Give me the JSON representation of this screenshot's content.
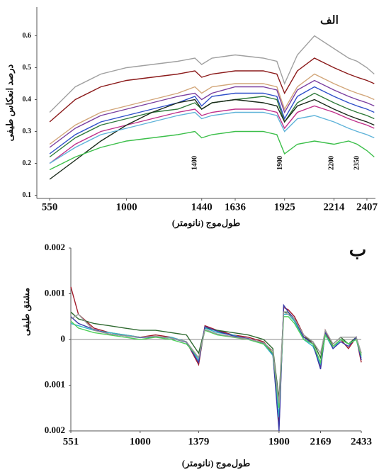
{
  "chart_data": [
    {
      "type": "line",
      "title": "الف",
      "x_label": "طول‌موج (نانومتر)",
      "y_label": "درصد انعکاس طیفی",
      "xlim": [
        475,
        2457
      ],
      "ylim": [
        0.09,
        0.69
      ],
      "xticks": [
        550,
        1000,
        1440,
        1636,
        1925,
        2214,
        2407
      ],
      "yticks": [
        0.1,
        0.2,
        0.3,
        0.4,
        0.5,
        0.6
      ],
      "annotations": [
        1400,
        1900,
        2200,
        2350
      ],
      "x": [
        550,
        700,
        850,
        1000,
        1150,
        1300,
        1400,
        1440,
        1500,
        1636,
        1800,
        1880,
        1925,
        2000,
        2100,
        2214,
        2300,
        2350,
        2407,
        2450
      ],
      "series": [
        {
          "color": "#a0a0a0",
          "values": [
            0.36,
            0.44,
            0.48,
            0.5,
            0.51,
            0.52,
            0.53,
            0.51,
            0.53,
            0.54,
            0.53,
            0.52,
            0.45,
            0.54,
            0.6,
            0.56,
            0.53,
            0.52,
            0.5,
            0.48
          ]
        },
        {
          "color": "#8b1a1a",
          "values": [
            0.33,
            0.4,
            0.44,
            0.46,
            0.47,
            0.48,
            0.49,
            0.47,
            0.48,
            0.49,
            0.49,
            0.48,
            0.42,
            0.49,
            0.53,
            0.5,
            0.48,
            0.47,
            0.46,
            0.45
          ]
        },
        {
          "color": "#d2a679",
          "values": [
            0.26,
            0.32,
            0.36,
            0.38,
            0.4,
            0.42,
            0.44,
            0.42,
            0.44,
            0.45,
            0.45,
            0.44,
            0.37,
            0.44,
            0.48,
            0.45,
            0.43,
            0.42,
            0.41,
            0.4
          ]
        },
        {
          "color": "#7b3fa0",
          "values": [
            0.25,
            0.31,
            0.35,
            0.37,
            0.39,
            0.41,
            0.42,
            0.4,
            0.42,
            0.44,
            0.44,
            0.43,
            0.36,
            0.43,
            0.46,
            0.43,
            0.41,
            0.4,
            0.39,
            0.38
          ]
        },
        {
          "color": "#2e4fc9",
          "values": [
            0.23,
            0.29,
            0.33,
            0.35,
            0.37,
            0.39,
            0.41,
            0.38,
            0.41,
            0.42,
            0.42,
            0.41,
            0.34,
            0.41,
            0.44,
            0.41,
            0.39,
            0.38,
            0.37,
            0.36
          ]
        },
        {
          "color": "#2f7a3a",
          "values": [
            0.22,
            0.28,
            0.32,
            0.34,
            0.36,
            0.37,
            0.39,
            0.37,
            0.39,
            0.4,
            0.41,
            0.4,
            0.33,
            0.39,
            0.42,
            0.39,
            0.37,
            0.36,
            0.35,
            0.34
          ]
        },
        {
          "color": "#c0308a",
          "values": [
            0.2,
            0.26,
            0.3,
            0.32,
            0.34,
            0.36,
            0.37,
            0.35,
            0.36,
            0.37,
            0.37,
            0.36,
            0.31,
            0.36,
            0.38,
            0.36,
            0.34,
            0.33,
            0.32,
            0.31
          ]
        },
        {
          "color": "#1a2a1a",
          "values": [
            0.15,
            0.21,
            0.27,
            0.32,
            0.36,
            0.39,
            0.4,
            0.37,
            0.39,
            0.4,
            0.39,
            0.38,
            0.33,
            0.38,
            0.4,
            0.37,
            0.35,
            0.34,
            0.33,
            0.32
          ]
        },
        {
          "color": "#5fb3d9",
          "values": [
            0.2,
            0.25,
            0.29,
            0.31,
            0.33,
            0.35,
            0.36,
            0.34,
            0.35,
            0.36,
            0.36,
            0.35,
            0.3,
            0.34,
            0.35,
            0.33,
            0.31,
            0.3,
            0.29,
            0.28
          ]
        },
        {
          "color": "#3cbf4a",
          "values": [
            0.18,
            0.22,
            0.25,
            0.27,
            0.28,
            0.29,
            0.3,
            0.28,
            0.29,
            0.3,
            0.3,
            0.29,
            0.23,
            0.26,
            0.27,
            0.26,
            0.27,
            0.26,
            0.24,
            0.22
          ]
        }
      ]
    },
    {
      "type": "line",
      "title": "ب",
      "x_label": "طول‌موج (نانومتر)",
      "y_label": "مشتق طیفی",
      "xlim": [
        551,
        2433
      ],
      "ylim": [
        -0.002,
        0.002
      ],
      "xticks": [
        551,
        1000,
        1379,
        1900,
        2169,
        2433
      ],
      "yticks": [
        0.002,
        0.001,
        0,
        {
          "value": -0.001,
          "label": "0.001"
        },
        {
          "value": -0.002,
          "label": "0.002"
        }
      ],
      "x": [
        551,
        600,
        700,
        800,
        900,
        1000,
        1100,
        1200,
        1300,
        1379,
        1420,
        1500,
        1600,
        1700,
        1800,
        1860,
        1900,
        1930,
        1960,
        2000,
        2060,
        2120,
        2169,
        2200,
        2250,
        2300,
        2350,
        2400,
        2433
      ],
      "series": [
        {
          "color": "#a01a2a",
          "values": [
            0.00115,
            0.00055,
            0.00025,
            0.00015,
            0.0001,
            5e-05,
            0.0001,
            5e-05,
            -5e-05,
            -0.00055,
            0.0003,
            0.0002,
            0.0001,
            5e-05,
            -5e-05,
            -0.0003,
            -0.0019,
            0.0007,
            0.00065,
            0.0005,
            0.0001,
            -0.0001,
            -0.0006,
            0.0002,
            -0.00015,
            0,
            -0.0002,
            5e-05,
            -0.0005
          ]
        },
        {
          "color": "#2f6a30",
          "values": [
            0.0006,
            0.00045,
            0.00035,
            0.0003,
            0.00025,
            0.0002,
            0.0002,
            0.00015,
            0.0001,
            -0.0003,
            0.00025,
            0.0002,
            0.00015,
            0.0001,
            0,
            -0.0002,
            -0.0013,
            0.0006,
            0.0006,
            0.0004,
            5e-05,
            -5e-05,
            -0.0004,
            0.0001,
            -0.0001,
            5e-05,
            -0.0001,
            5e-05,
            -0.0003
          ]
        },
        {
          "color": "#30b8c8",
          "values": [
            0.00035,
            0.0003,
            0.0002,
            0.00015,
            0.0001,
            5e-05,
            5e-05,
            5e-05,
            -5e-05,
            -0.00045,
            0.00025,
            0.00015,
            0.0001,
            0,
            -0.0001,
            -0.00035,
            -0.0017,
            0.00055,
            0.00055,
            0.0004,
            0,
            -0.00015,
            -0.00055,
            0.0001,
            -0.0002,
            0,
            -0.0001,
            0,
            -0.0004
          ]
        },
        {
          "color": "#3a3aa8",
          "values": [
            0.0005,
            0.00035,
            0.00022,
            0.00012,
            8e-05,
            4e-05,
            6e-05,
            3e-05,
            -6e-05,
            -0.0005,
            0.00028,
            0.00018,
            8e-05,
            2e-05,
            -8e-05,
            -0.00032,
            -0.002,
            0.00075,
            0.0006,
            0.00045,
            5e-05,
            -0.0001,
            -0.00065,
            0.00015,
            -0.0002,
            -5e-05,
            -0.00015,
            5e-05,
            -0.00045
          ]
        },
        {
          "color": "#4fcf5a",
          "values": [
            0.0004,
            0.00025,
            0.00015,
            0.0001,
            5e-05,
            0,
            5e-05,
            0,
            -0.0001,
            -0.0004,
            0.0002,
            0.0001,
            5e-05,
            0,
            -0.0001,
            -0.0003,
            -0.0015,
            0.0005,
            0.0005,
            0.00035,
            0,
            -0.0001,
            -0.0005,
            0.0001,
            -0.00015,
            0,
            -0.0001,
            0,
            -0.00035
          ]
        },
        {
          "color": "#999999",
          "values": [
            0.00045,
            0.00055,
            0.0002,
            0.00012,
            8e-05,
            5e-05,
            7e-05,
            3e-05,
            -5e-05,
            -0.0004,
            0.00022,
            0.00012,
            6e-05,
            1e-05,
            -7e-05,
            -0.00025,
            -0.0014,
            0.0006,
            0.00055,
            0.00045,
            0.0001,
            -5e-05,
            -0.0003,
            0.0002,
            -0.0001,
            5e-05,
            5e-05,
            5e-05,
            -0.0003
          ]
        }
      ]
    }
  ]
}
